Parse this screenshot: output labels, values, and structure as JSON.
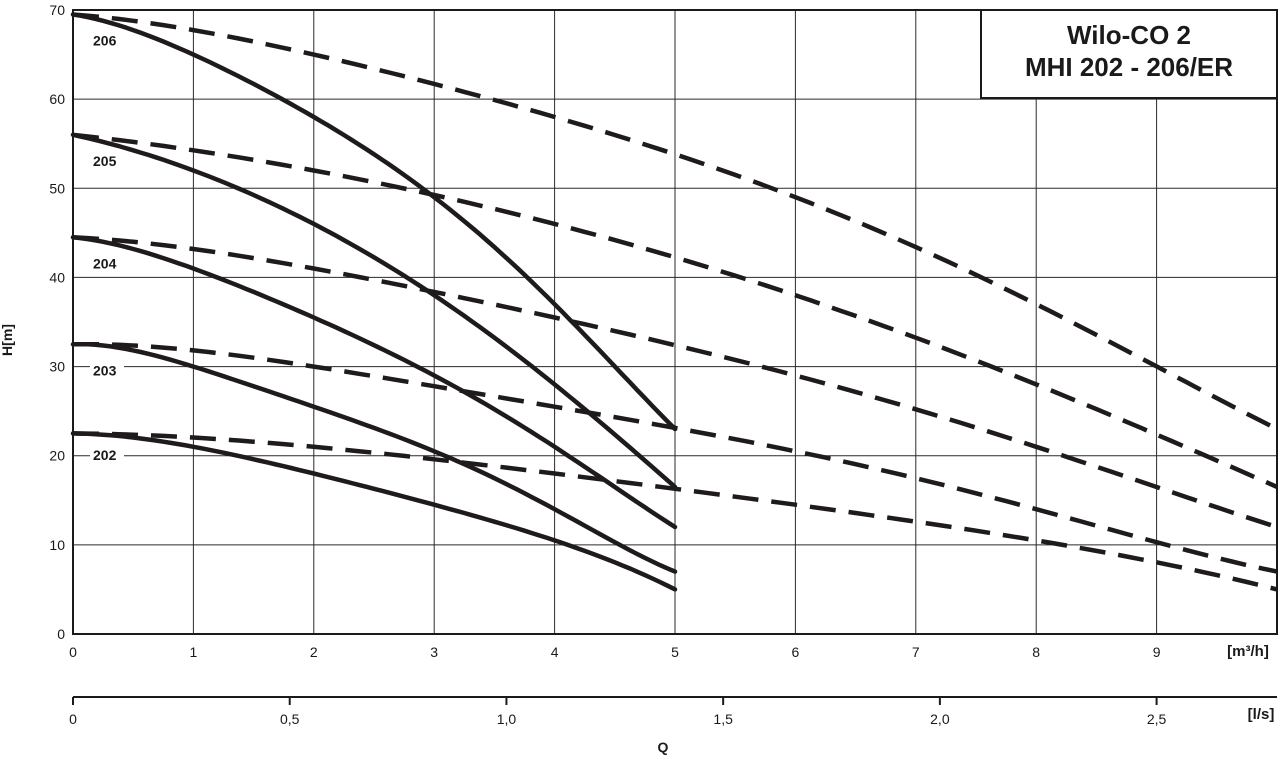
{
  "chart_data": {
    "type": "line",
    "title_lines": [
      "Wilo-CO 2",
      "MHI 202 - 206/ER"
    ],
    "ylabel": "H[m]",
    "xlabel": "Q",
    "x_unit": "[m³/h]",
    "x2_unit": "[l/s]",
    "xlim": [
      0,
      10
    ],
    "ylim": [
      0,
      70
    ],
    "x_ticks": [
      "0",
      "1",
      "2",
      "3",
      "4",
      "5",
      "6",
      "7",
      "8",
      "9"
    ],
    "y_ticks": [
      "0",
      "10",
      "20",
      "30",
      "40",
      "50",
      "60",
      "70"
    ],
    "x2_ticks": [
      {
        "v": 0,
        "label": "0"
      },
      {
        "v": 0.5,
        "label": "0,5"
      },
      {
        "v": 1.0,
        "label": "1,0"
      },
      {
        "v": 1.5,
        "label": "1,5"
      },
      {
        "v": 2.0,
        "label": "2,0"
      },
      {
        "v": 2.5,
        "label": "2,5"
      }
    ],
    "grid": true,
    "series": [
      {
        "name": "206",
        "single_pump": {
          "x": [
            0,
            1,
            2,
            3,
            4,
            5
          ],
          "y": [
            69.5,
            65,
            58,
            49,
            37,
            23
          ]
        },
        "two_pumps": {
          "x": [
            0,
            2,
            4,
            6,
            8,
            10
          ],
          "y": [
            69.5,
            65,
            58,
            49,
            37,
            23
          ]
        }
      },
      {
        "name": "205",
        "single_pump": {
          "x": [
            0,
            1,
            2,
            3,
            4,
            5
          ],
          "y": [
            56,
            52,
            46,
            38,
            28,
            16.5
          ]
        },
        "two_pumps": {
          "x": [
            0,
            2,
            4,
            6,
            8,
            10
          ],
          "y": [
            56,
            52,
            46,
            38,
            28,
            16.5
          ]
        }
      },
      {
        "name": "204",
        "single_pump": {
          "x": [
            0,
            1,
            2,
            3,
            4,
            5
          ],
          "y": [
            44.5,
            41,
            35.5,
            29,
            21,
            12
          ]
        },
        "two_pumps": {
          "x": [
            0,
            2,
            4,
            6,
            8,
            10
          ],
          "y": [
            44.5,
            41,
            35.5,
            29,
            21,
            12
          ]
        }
      },
      {
        "name": "203",
        "single_pump": {
          "x": [
            0,
            1,
            2,
            3,
            4,
            5
          ],
          "y": [
            32.5,
            30,
            25.5,
            20.5,
            14,
            7
          ]
        },
        "two_pumps": {
          "x": [
            0,
            2,
            4,
            6,
            8,
            10
          ],
          "y": [
            32.5,
            30,
            25.5,
            20.5,
            14,
            7
          ]
        }
      },
      {
        "name": "202",
        "single_pump": {
          "x": [
            0,
            1,
            2,
            3,
            4,
            5
          ],
          "y": [
            22.5,
            21,
            18,
            14.5,
            10.5,
            5
          ]
        },
        "two_pumps": {
          "x": [
            0,
            2,
            4,
            6,
            8,
            10
          ],
          "y": [
            22.5,
            21,
            18,
            14.5,
            10.5,
            5
          ]
        }
      }
    ],
    "curve_label_y": [
      66,
      52.5,
      41,
      29,
      19.5
    ],
    "colors": {
      "curve": "#1f1b1c",
      "grid": "#2a2a2a",
      "frame": "#1a1a1a"
    }
  }
}
